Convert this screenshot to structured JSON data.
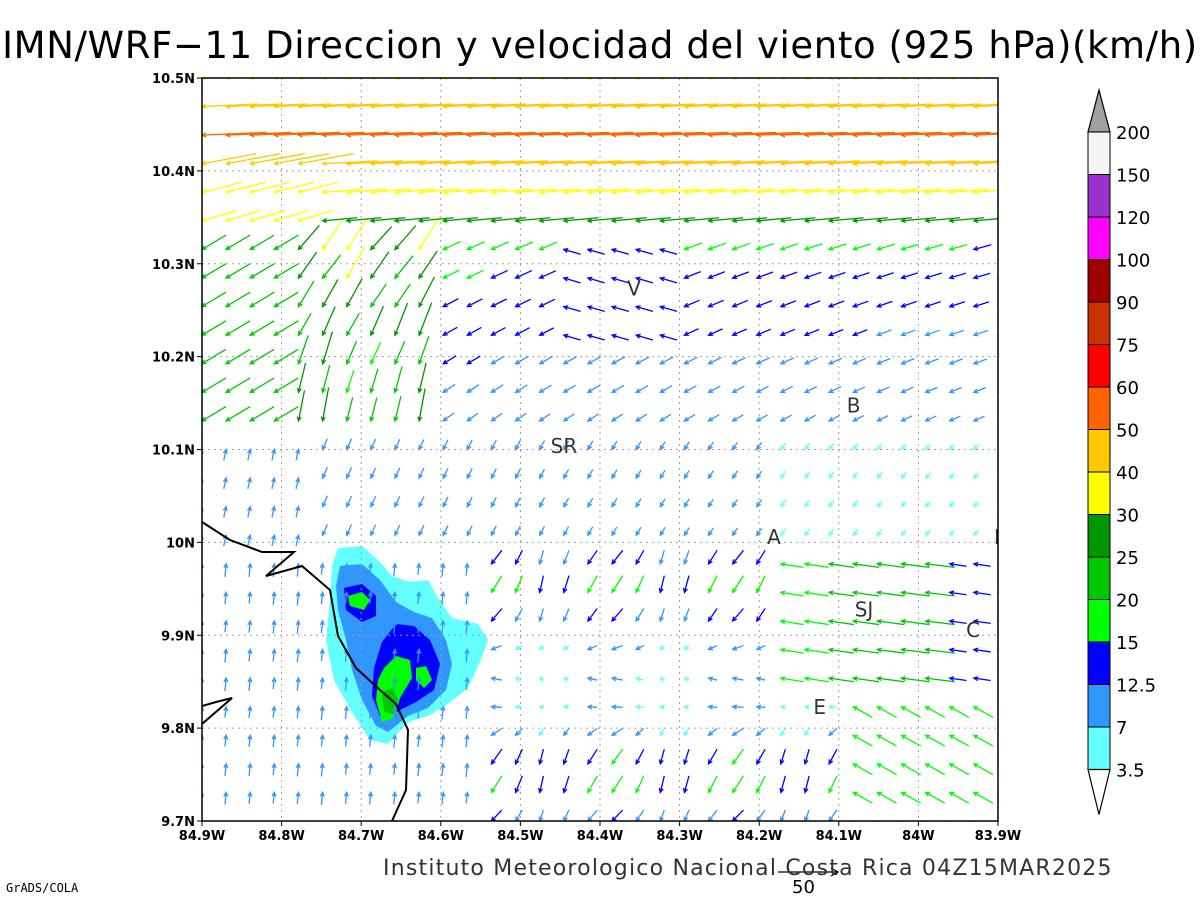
{
  "title": "IMN/WRF−11 Direccion y velocidad del viento (925 hPa)(km/h)",
  "footer": "Instituto Meteorologico Nacional Costa Rica  04Z15MAR2025",
  "credit": "GrADS/COLA",
  "reference_vector_label": "50",
  "axes": {
    "x_ticks": [
      "84.9W",
      "84.8W",
      "84.7W",
      "84.6W",
      "84.5W",
      "84.4W",
      "84.3W",
      "84.2W",
      "84.1W",
      "84W",
      "83.9W"
    ],
    "y_ticks": [
      "10.5N",
      "10.4N",
      "10.3N",
      "10.2N",
      "10.1N",
      "10N",
      "9.9N",
      "9.8N",
      "9.7N"
    ],
    "lon_range": [
      -84.9,
      -83.9
    ],
    "lat_range": [
      9.7,
      10.5
    ],
    "grid": true
  },
  "place_labels": [
    {
      "text": "V",
      "lon": -84.366,
      "lat": 10.266
    },
    {
      "text": "B",
      "lon": -84.09,
      "lat": 10.14
    },
    {
      "text": "SR",
      "lon": -84.462,
      "lat": 10.096
    },
    {
      "text": "A",
      "lon": -84.19,
      "lat": 9.998
    },
    {
      "text": "I",
      "lon": -83.905,
      "lat": 9.998
    },
    {
      "text": "SJ",
      "lon": -84.08,
      "lat": 9.92
    },
    {
      "text": "C",
      "lon": -83.94,
      "lat": 9.898
    },
    {
      "text": "E",
      "lon": -84.132,
      "lat": 9.815
    }
  ],
  "legend": {
    "labels": [
      "200",
      "150",
      "120",
      "100",
      "90",
      "75",
      "60",
      "50",
      "40",
      "30",
      "25",
      "20",
      "15",
      "12.5",
      "7",
      "3.5"
    ],
    "colors": [
      "#f5f5f5",
      "#9932cc",
      "#ff00ff",
      "#a00000",
      "#c83200",
      "#ff0000",
      "#ff6400",
      "#ffc800",
      "#ffff00",
      "#009600",
      "#00c800",
      "#00ff00",
      "#0000ff",
      "#3296ff",
      "#64ffff"
    ],
    "top_arrow_color": "#a0a0a0"
  },
  "wind_color_scale": {
    "breaks": [
      3.5,
      7,
      12.5,
      15,
      20,
      25,
      30,
      40,
      50,
      60,
      75,
      90,
      100,
      120,
      150
    ],
    "colors": [
      "#64ffff",
      "#3296ff",
      "#0000ff",
      "#00ff00",
      "#00c800",
      "#009600",
      "#ffff00",
      "#ffc800",
      "#ff6400",
      "#ff0000",
      "#c83200",
      "#a00000",
      "#ff00ff",
      "#9932cc",
      "#f5f5f5"
    ]
  },
  "colors": {
    "grid": "#a0a0a0",
    "coast": "#000000",
    "shade_3_5": "#64ffff",
    "shade_7": "#3296ff",
    "shade_12_5": "#0000ff",
    "shade_15": "#00ff00",
    "shade_20": "#00c800"
  }
}
